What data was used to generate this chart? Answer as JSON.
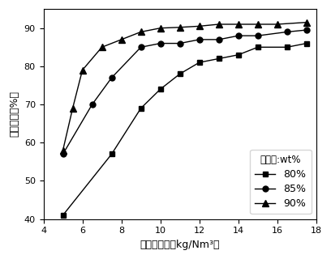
{
  "xlabel": "液气流量比（kg/Nm³）",
  "ylabel": "脱碳效率（%）",
  "legend_title": "含水量:wt%",
  "xlim": [
    4,
    18
  ],
  "ylim": [
    40,
    95
  ],
  "xticks": [
    4,
    6,
    8,
    10,
    12,
    14,
    16,
    18
  ],
  "yticks": [
    40,
    50,
    60,
    70,
    80,
    90
  ],
  "series": [
    {
      "label": "80%",
      "marker": "s",
      "x": [
        5.0,
        7.5,
        9.0,
        10.0,
        11.0,
        12.0,
        13.0,
        14.0,
        15.0,
        16.5,
        17.5
      ],
      "y": [
        41,
        57,
        69,
        74,
        78,
        81,
        82,
        83,
        85,
        85,
        86
      ]
    },
    {
      "label": "85%",
      "marker": "o",
      "x": [
        5.0,
        6.5,
        7.5,
        9.0,
        10.0,
        11.0,
        12.0,
        13.0,
        14.0,
        15.0,
        16.5,
        17.5
      ],
      "y": [
        57,
        70,
        77,
        85,
        86,
        86,
        87,
        87,
        88,
        88,
        89,
        89.5
      ]
    },
    {
      "label": "90%",
      "marker": "^",
      "x": [
        5.0,
        5.5,
        6.0,
        7.0,
        8.0,
        9.0,
        10.0,
        11.0,
        12.0,
        13.0,
        14.0,
        15.0,
        16.0,
        17.5
      ],
      "y": [
        58,
        69,
        79,
        85,
        87,
        89,
        90,
        90.2,
        90.5,
        91,
        91,
        91,
        91,
        91.5
      ]
    }
  ],
  "line_color": "#000000",
  "background_color": "#ffffff",
  "markersizes": {
    "s": 5,
    "o": 5,
    "^": 6
  }
}
